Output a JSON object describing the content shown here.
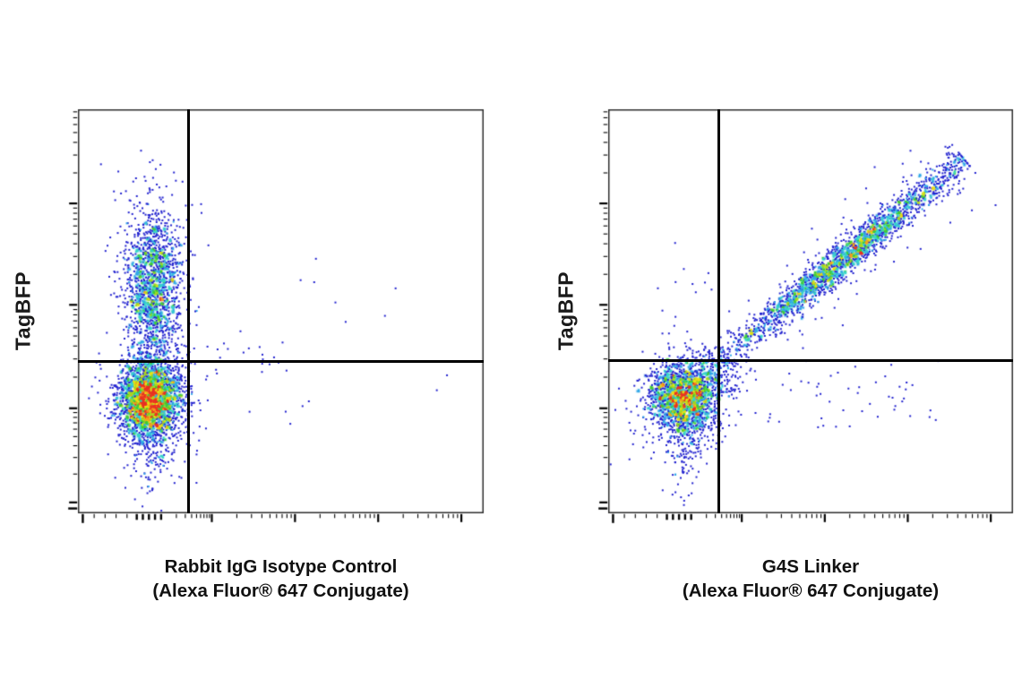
{
  "figure": {
    "background": "#ffffff",
    "description": "Two-panel flow cytometry pseudocolor dot plots with quadrant gates; no numeric tick labels are shown on either axis.",
    "panels": [
      {
        "id": "isotype-control",
        "y_axis_label": "TagBFP",
        "title_line1": "Rabbit IgG Isotype Control",
        "title_line2": "(Alexa Fluor® 647 Conjugate)"
      },
      {
        "id": "g4s-linker",
        "y_axis_label": "TagBFP",
        "title_line1": "G4S Linker",
        "title_line2": "(Alexa Fluor® 647 Conjugate)"
      }
    ]
  },
  "chart_data": [
    {
      "type": "scatter",
      "subtype": "flow-cytometry-pseudocolor-density",
      "title": "Rabbit IgG Isotype Control (Alexa Fluor® 647 Conjugate)",
      "xlabel": "Rabbit IgG Isotype Control (Alexa Fluor® 647 Conjugate)",
      "ylabel": "TagBFP",
      "x_scale": "biexponential, no numeric tick labels shown",
      "y_scale": "biexponential, no numeric tick labels shown",
      "grid": false,
      "legend": false,
      "seed": 20201,
      "quadrant_gate": {
        "x_frac": 0.273,
        "y_frac": 0.625
      },
      "populations": [
        {
          "name": "TagBFP-positive AF647-negative (upper-left elongated)",
          "type": "gauss",
          "cx": 0.185,
          "cy": 0.44,
          "sx": 0.036,
          "sy": 0.103,
          "n": 1650
        },
        {
          "name": "double-negative dense cluster (lower-left)",
          "type": "gauss",
          "cx": 0.177,
          "cy": 0.717,
          "sx": 0.04,
          "sy": 0.05,
          "n": 2500
        },
        {
          "name": "lower-left downward tail",
          "type": "gauss",
          "cx": 0.183,
          "cy": 0.8,
          "sx": 0.03,
          "sy": 0.075,
          "n": 240
        },
        {
          "name": "scatter along horizontal gate right of vertical gate",
          "type": "spray",
          "x0": 0.27,
          "x1": 0.52,
          "y0": 0.575,
          "y1": 0.655,
          "n": 18
        },
        {
          "name": "sparse events right half",
          "type": "spray",
          "x0": 0.28,
          "x1": 0.95,
          "y0": 0.44,
          "y1": 0.8,
          "n": 13
        },
        {
          "name": "sparse events upper middle",
          "type": "spray",
          "x0": 0.25,
          "x1": 0.62,
          "y0": 0.18,
          "y1": 0.55,
          "n": 7
        }
      ],
      "density_palette": [
        "#2323cf",
        "#2323cf",
        "#2fa6e8",
        "#35d4c8",
        "#3ecc35",
        "#a6d61f",
        "#e8e214",
        "#f5a01e",
        "#e83223"
      ]
    },
    {
      "type": "scatter",
      "subtype": "flow-cytometry-pseudocolor-density",
      "title": "G4S Linker (Alexa Fluor® 647 Conjugate)",
      "xlabel": "G4S Linker (Alexa Fluor® 647 Conjugate)",
      "ylabel": "TagBFP",
      "x_scale": "biexponential, no numeric tick labels shown",
      "y_scale": "biexponential, no numeric tick labels shown",
      "grid": false,
      "legend": false,
      "seed": 77003,
      "quadrant_gate": {
        "x_frac": 0.273,
        "y_frac": 0.622
      },
      "populations": [
        {
          "name": "double-negative dense cluster (lower-left)",
          "type": "gauss",
          "cx": 0.187,
          "cy": 0.712,
          "sx": 0.044,
          "sy": 0.047,
          "n": 1900
        },
        {
          "name": "lower-left downward tail",
          "type": "gauss",
          "cx": 0.19,
          "cy": 0.8,
          "sx": 0.027,
          "sy": 0.08,
          "n": 160
        },
        {
          "name": "TagBFP/AF647 correlated double-positive diagonal",
          "type": "band",
          "x0": 0.235,
          "y0": 0.655,
          "x1": 0.855,
          "y1": 0.145,
          "sp": 0.0235,
          "n": 2250,
          "mid": 0.56,
          "spread": 0.21,
          "unif": 0.3
        },
        {
          "name": "bridge between diagonal and negative cluster",
          "type": "spray",
          "x0": 0.23,
          "x1": 0.33,
          "y0": 0.62,
          "y1": 0.72,
          "n": 55
        },
        {
          "name": "lower-right sparse scatter",
          "type": "spray",
          "x0": 0.3,
          "x1": 0.85,
          "y0": 0.62,
          "y1": 0.79,
          "n": 55
        },
        {
          "name": "upper-left sparse scatter",
          "type": "spray",
          "x0": 0.12,
          "x1": 0.26,
          "y0": 0.33,
          "y1": 0.62,
          "n": 10
        },
        {
          "name": "bottom sparse tail",
          "type": "spray",
          "x0": 0.15,
          "x1": 0.25,
          "y0": 0.86,
          "y1": 0.97,
          "n": 6
        }
      ],
      "density_palette": [
        "#2323cf",
        "#2323cf",
        "#2fa6e8",
        "#35d4c8",
        "#3ecc35",
        "#a6d61f",
        "#e8e214",
        "#f5a01e",
        "#e83223"
      ]
    }
  ]
}
